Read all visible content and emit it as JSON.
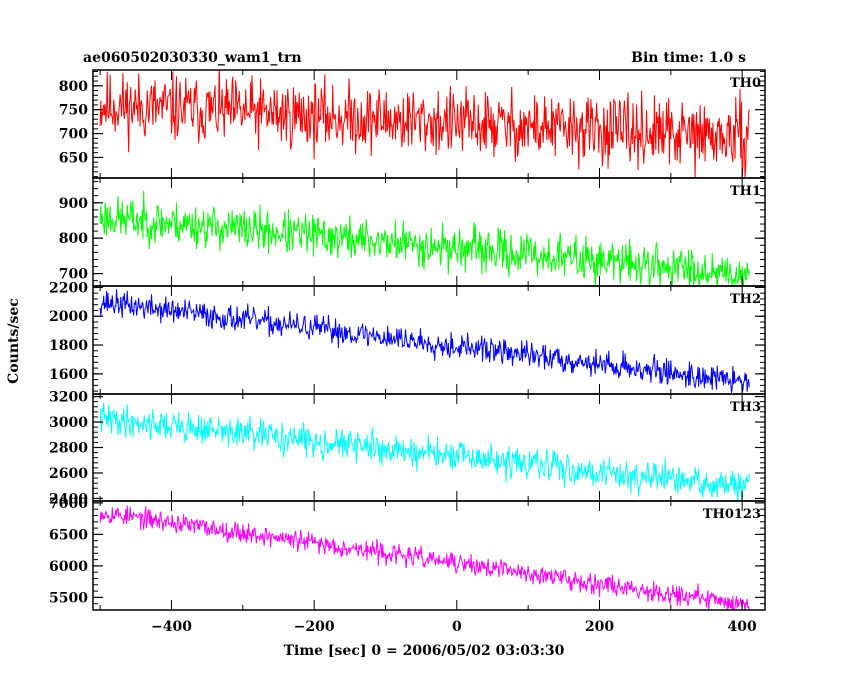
{
  "header": {
    "title": "ae060502030330_wam1_trn",
    "bin_time": "Bin time: 1.0 s"
  },
  "chart_data": {
    "type": "line",
    "title": "ae060502030330_wam1_trn",
    "xlabel": "Time [sec] 0 = 2006/05/02 03:03:30",
    "ylabel": "Counts/sec",
    "xlim": [
      -510,
      432
    ],
    "x_ticks": [
      -400,
      -200,
      0,
      200,
      400
    ],
    "x_tick_labels": [
      "−400",
      "−200",
      "0",
      "200",
      "400"
    ],
    "x_range": [
      -500,
      410
    ],
    "grid": false,
    "panels": [
      {
        "name": "TH0",
        "color": "#ff0000",
        "ylim": [
          607,
          833
        ],
        "y_ticks": [
          650,
          700,
          750,
          800
        ],
        "start": 760,
        "end": 690,
        "noise": 35,
        "seed": 11
      },
      {
        "name": "TH1",
        "color": "#00ff00",
        "ylim": [
          665,
          970
        ],
        "y_ticks": [
          700,
          800,
          900
        ],
        "start": 860,
        "end": 700,
        "noise": 30,
        "seed": 23
      },
      {
        "name": "TH2",
        "color": "#0000ff",
        "ylim": [
          1460,
          2210
        ],
        "y_ticks": [
          1600,
          1800,
          2000,
          2200
        ],
        "start": 2100,
        "end": 1540,
        "noise": 45,
        "seed": 37
      },
      {
        "name": "TH3",
        "color": "#00ffff",
        "ylim": [
          2380,
          3220
        ],
        "y_ticks": [
          2400,
          2600,
          2800,
          3000,
          3200
        ],
        "start": 3030,
        "end": 2480,
        "noise": 60,
        "seed": 41
      },
      {
        "name": "TH0123",
        "color": "#ff00ff",
        "ylim": [
          5300,
          7030
        ],
        "y_ticks": [
          5500,
          6000,
          6500,
          7000
        ],
        "start": 6850,
        "end": 5380,
        "noise": 80,
        "seed": 53
      }
    ]
  }
}
